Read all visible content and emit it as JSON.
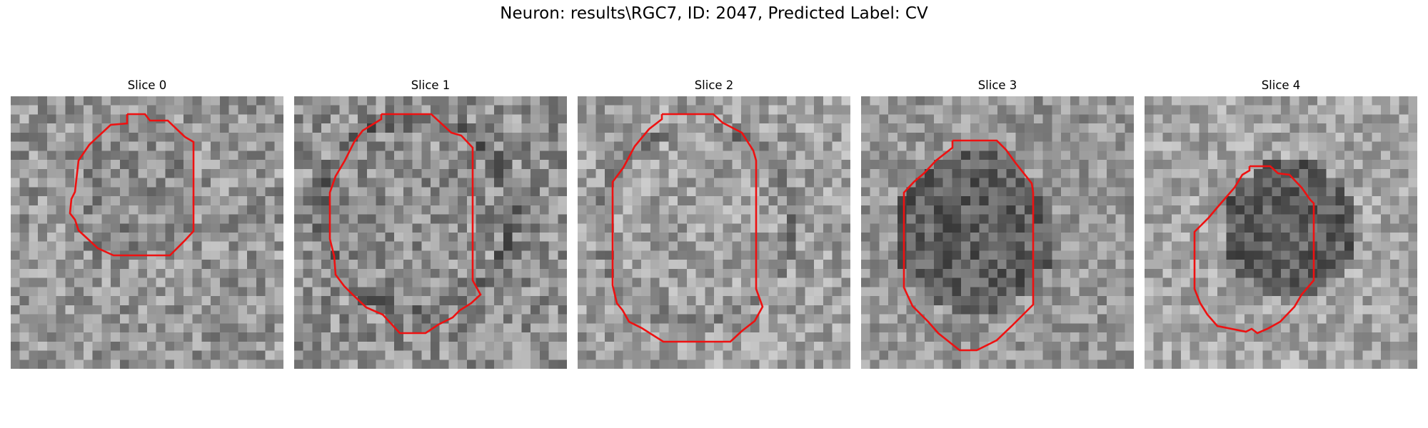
{
  "figure_title": "Neuron: results\\RGC7, ID: 2047, Predicted Label: CV",
  "colors": {
    "contour": "#ee1111",
    "background": "#ffffff"
  },
  "panels": [
    {
      "title": "Slice 0"
    },
    {
      "title": "Slice 1"
    },
    {
      "title": "Slice 2"
    },
    {
      "title": "Slice 3"
    },
    {
      "title": "Slice 4"
    }
  ]
}
